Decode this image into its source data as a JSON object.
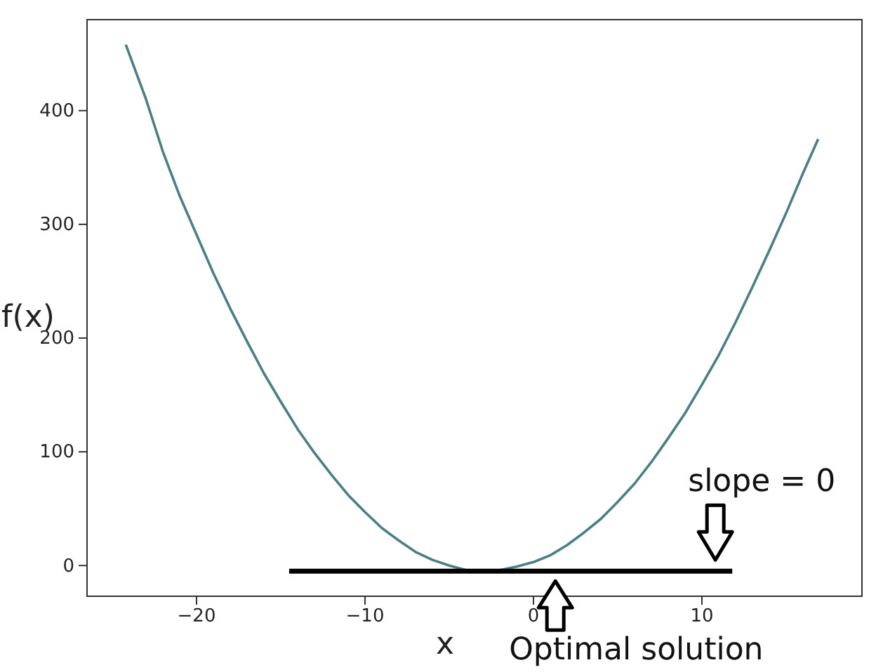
{
  "chart_data": {
    "type": "line",
    "xlabel": "x",
    "ylabel": "f(x)",
    "xlim": [
      -26.5,
      19.5
    ],
    "ylim": [
      -27,
      480
    ],
    "xticks": [
      {
        "value": -20,
        "label": "−20"
      },
      {
        "value": -10,
        "label": "−10"
      },
      0,
      10
    ],
    "yticks": [
      0,
      100,
      200,
      300,
      400
    ],
    "grid": false,
    "marker": "none",
    "line_style": "solid",
    "series": [
      {
        "color": "#4a7f86",
        "x": [
          -24.2,
          -23,
          -22,
          -21,
          -20,
          -19,
          -18,
          -17,
          -16,
          -15,
          -14,
          -13,
          -12,
          -11,
          -10,
          -9,
          -8,
          -7,
          -6,
          -5,
          -4,
          -3,
          -2,
          -1,
          0,
          1,
          2,
          3,
          4,
          5,
          6,
          7,
          8,
          9,
          10,
          11,
          12,
          13,
          14,
          15,
          16,
          16.9
        ],
        "values": [
          458,
          410,
          364,
          325,
          291,
          257,
          226,
          197,
          169,
          144,
          120,
          99,
          80,
          62,
          47,
          33,
          22,
          12,
          5,
          0,
          -4,
          -5,
          -4,
          -1,
          3,
          9,
          18,
          29,
          41,
          56,
          72,
          91,
          112,
          134,
          159,
          185,
          214,
          245,
          277,
          310,
          345,
          375
        ]
      },
      {
        "color": "#000000",
        "x": [
          -14.5,
          11.8
        ],
        "values": [
          -5,
          -5
        ]
      }
    ],
    "annotations": [
      {
        "text": "slope = 0",
        "x": 10.8,
        "y": -5
      },
      {
        "text": "Optimal solution",
        "x": 1.3,
        "y": -5
      }
    ]
  }
}
